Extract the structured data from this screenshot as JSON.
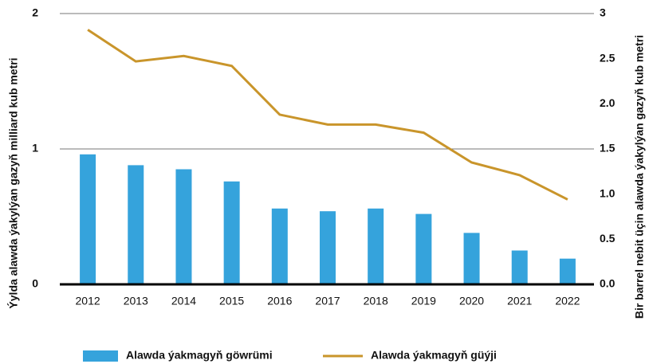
{
  "chart_data": {
    "type": "bar_line",
    "categories": [
      "2012",
      "2013",
      "2014",
      "2015",
      "2016",
      "2017",
      "2018",
      "2019",
      "2020",
      "2021",
      "2022"
    ],
    "series": [
      {
        "name": "Alawda ýakmagyň göwrümi",
        "color": "#35a3dc",
        "type": "bar",
        "axis": "y",
        "values": [
          0.96,
          0.88,
          0.85,
          0.76,
          0.56,
          0.54,
          0.56,
          0.52,
          0.38,
          0.25,
          0.19
        ]
      },
      {
        "name": "Alawda ýakmagyň güýji",
        "color": "#c9952b",
        "type": "line",
        "axis": "y2",
        "values": [
          2.82,
          2.47,
          2.53,
          2.42,
          1.88,
          1.77,
          1.77,
          1.68,
          1.35,
          1.21,
          0.94
        ]
      }
    ],
    "ylabel": "Ýylda alawda ýakylýan gazyň milliard kub metri",
    "y2label": "Bir barrel nebit üçin alawda ýakylýan gazyň kub metri",
    "ylim": [
      0,
      2
    ],
    "yticks": [
      0,
      1,
      2
    ],
    "y2lim": [
      0,
      3
    ],
    "y2ticks": [
      {
        "value": 0,
        "label": "0.0"
      },
      0.5,
      {
        "value": 1,
        "label": "1.0"
      },
      1.5,
      {
        "value": 2,
        "label": "2.0"
      },
      2.5,
      3
    ],
    "grid": true,
    "legend": "bottom"
  }
}
